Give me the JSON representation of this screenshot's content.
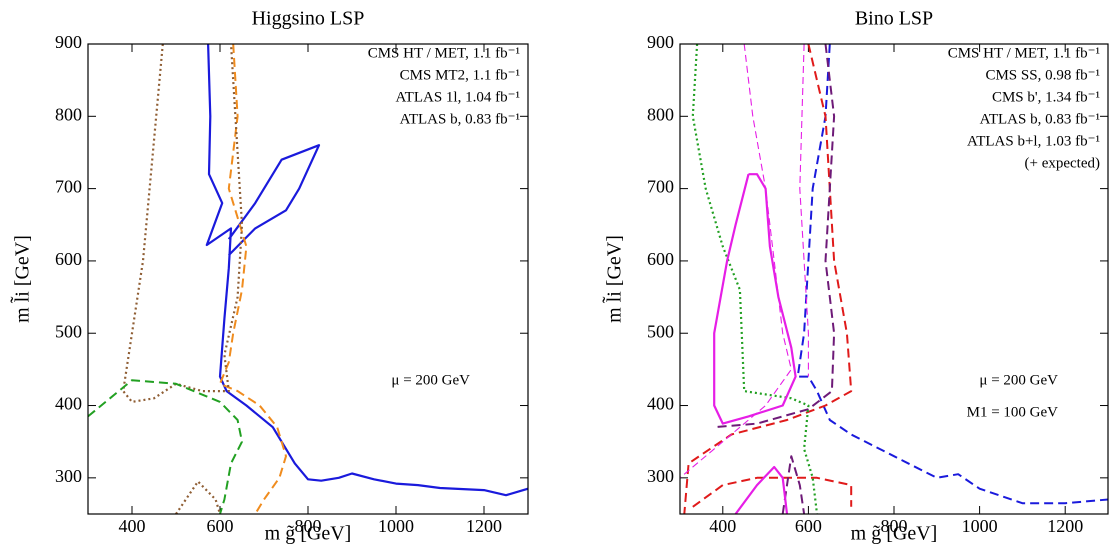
{
  "chart_data": [
    {
      "type": "line",
      "title": "Higgsino LSP",
      "x_label": "m g̃  [GeV]",
      "y_label": "m l̃i  [GeV]",
      "xlim": [
        300,
        1300
      ],
      "ylim": [
        250,
        900
      ],
      "xticks": [
        400,
        600,
        800,
        1000,
        1200
      ],
      "yticks": [
        300,
        400,
        500,
        600,
        700,
        800,
        900
      ],
      "annotations": [
        "μ  =  200 GeV"
      ],
      "series": [
        {
          "name": "CMS HT / MET,  1.1 fb⁻¹",
          "color": "#1a1adc",
          "dash": "solid",
          "x": [
            573,
            578,
            575,
            605,
            570,
            625,
            620,
            610,
            600,
            615,
            660,
            720,
            770,
            800,
            830,
            870,
            900,
            950,
            1000,
            1050,
            1100,
            1200,
            1250,
            1300,
            null,
            620,
            680,
            740,
            825,
            780,
            750,
            680,
            620
          ],
          "values": [
            900,
            800,
            720,
            680,
            622,
            645,
            590,
            520,
            440,
            420,
            400,
            370,
            320,
            298,
            296,
            300,
            306,
            298,
            292,
            290,
            286,
            283,
            276,
            285,
            null,
            630,
            680,
            740,
            760,
            700,
            670,
            645,
            608
          ]
        },
        {
          "name": "CMS MT2,  1.1 fb⁻¹",
          "color": "#f08c1e",
          "dash": "dashed",
          "x": [
            630,
            640,
            620,
            660,
            650,
            630,
            620,
            600,
            640,
            690,
            730,
            750,
            735,
            700,
            680
          ],
          "values": [
            900,
            800,
            700,
            620,
            560,
            500,
            460,
            430,
            420,
            400,
            370,
            330,
            300,
            270,
            250
          ]
        },
        {
          "name": "ATLAS 1l,  1.04 fb⁻¹",
          "color": "#8f5e34",
          "dash": "dotted",
          "x": [
            470,
            455,
            440,
            425,
            400,
            380,
            400,
            450,
            500,
            560,
            620,
            610,
            640,
            650,
            640,
            625,
            null,
            500,
            550,
            590,
            600
          ],
          "values": [
            900,
            800,
            700,
            600,
            500,
            420,
            405,
            410,
            430,
            420,
            420,
            470,
            550,
            650,
            750,
            900,
            null,
            250,
            295,
            270,
            250
          ]
        },
        {
          "name": "ATLAS b,  0.83 fb⁻¹",
          "color": "#22a022",
          "dash": "dashed",
          "x": [
            300,
            350,
            400,
            500,
            600,
            640,
            650,
            625,
            610,
            600
          ],
          "values": [
            385,
            410,
            435,
            430,
            405,
            380,
            350,
            320,
            270,
            250
          ]
        }
      ]
    },
    {
      "type": "line",
      "title": "Bino LSP",
      "x_label": "m g̃  [GeV]",
      "y_label": "m l̃i  [GeV]",
      "xlim": [
        300,
        1300
      ],
      "ylim": [
        250,
        900
      ],
      "xticks": [
        400,
        600,
        800,
        1000,
        1200
      ],
      "yticks": [
        300,
        400,
        500,
        600,
        700,
        800,
        900
      ],
      "annotations": [
        "μ  =  200 GeV",
        "M1  =  100 GeV"
      ],
      "series": [
        {
          "name": "CMS HT / MET,  1.1 fb⁻¹",
          "color": "#1a1adc",
          "dash": "dashed",
          "x": [
            650,
            640,
            610,
            600,
            590,
            575,
            600,
            620,
            650,
            700,
            800,
            900,
            950,
            1000,
            1100,
            1200,
            1300
          ],
          "values": [
            900,
            800,
            700,
            600,
            500,
            440,
            440,
            420,
            380,
            360,
            330,
            300,
            305,
            285,
            265,
            265,
            270
          ]
        },
        {
          "name": "CMS SS,  0.98 fb⁻¹",
          "color": "#e01a1a",
          "dash": "dashed",
          "x": [
            600,
            640,
            650,
            660,
            690,
            700,
            640,
            550,
            420,
            320,
            310,
            null,
            330,
            400,
            480,
            560,
            620,
            700,
            700
          ],
          "values": [
            900,
            800,
            700,
            600,
            500,
            420,
            400,
            380,
            360,
            320,
            250,
            null,
            260,
            290,
            300,
            300,
            300,
            290,
            260
          ]
        },
        {
          "name": "CMS b',  1.34 fb⁻¹",
          "color": "#6e1a78",
          "dash": "dashed",
          "x": [
            640,
            660,
            650,
            640,
            660,
            655,
            600,
            480,
            380,
            null,
            540,
            560,
            580,
            590
          ],
          "values": [
            900,
            800,
            700,
            600,
            500,
            420,
            395,
            375,
            370,
            null,
            250,
            330,
            290,
            250
          ]
        },
        {
          "name": "ATLAS b,  0.83 fb⁻¹",
          "color": "#22a022",
          "dash": "dotted",
          "x": [
            340,
            330,
            360,
            400,
            440,
            450,
            560,
            600,
            590,
            610,
            620
          ],
          "values": [
            900,
            800,
            700,
            620,
            560,
            420,
            410,
            400,
            340,
            300,
            250
          ]
        },
        {
          "name": "ATLAS b+l,  1.03 fb⁻¹",
          "color": "#e61ee6",
          "dash": "solid",
          "x": [
            460,
            480,
            500,
            510,
            530,
            560,
            570,
            540,
            460,
            400,
            380,
            380,
            410,
            430,
            460,
            null,
            430,
            480,
            520,
            540,
            550
          ],
          "values": [
            720,
            720,
            700,
            620,
            550,
            480,
            440,
            400,
            385,
            375,
            400,
            500,
            600,
            650,
            720,
            null,
            250,
            290,
            315,
            300,
            250
          ]
        },
        {
          "name": "(+ expected)",
          "color": "#e61ee6",
          "dash": "thin-dashed",
          "x": [
            450,
            470,
            500,
            520,
            540,
            560,
            500,
            400,
            300,
            null,
            590,
            580,
            600,
            600
          ],
          "values": [
            900,
            800,
            700,
            600,
            500,
            450,
            400,
            350,
            300,
            null,
            900,
            700,
            500,
            440
          ]
        }
      ]
    }
  ]
}
